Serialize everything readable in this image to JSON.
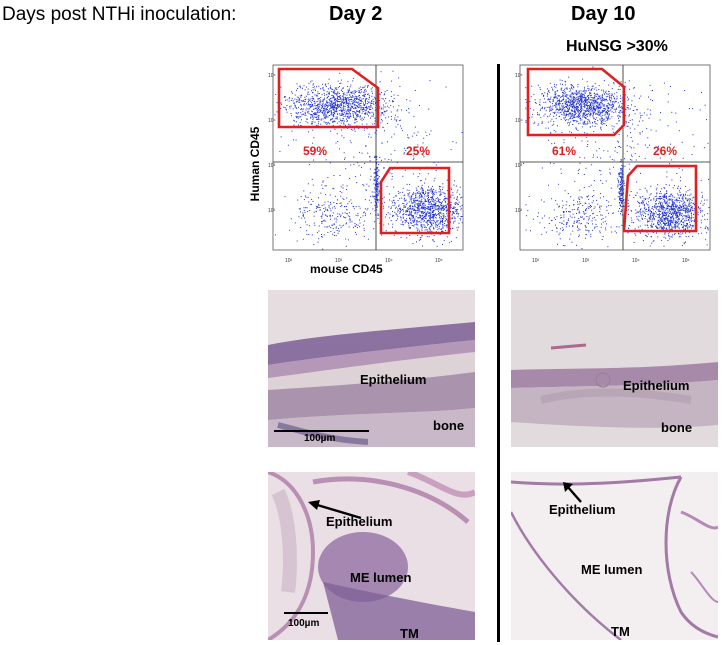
{
  "figure": {
    "header_label": "Days post NTHi inoculation:",
    "columns": [
      {
        "title": "Day 2",
        "subtitle": "",
        "flow": {
          "y_axis_title": "Human CD45",
          "x_axis_title": "mouse CD45",
          "gate_human_percent": "59%",
          "gate_mouse_percent": "25%",
          "gate_color": "#e02020",
          "dot_color": "#2233cc"
        },
        "histology_upper": {
          "labels": [
            "Epithelium",
            "bone"
          ],
          "scale_bar": "100µm"
        },
        "histology_lower": {
          "labels": [
            "Epithelium",
            "ME lumen",
            "TM"
          ],
          "scale_bar": "100µm"
        }
      },
      {
        "title": "Day 10",
        "subtitle": "HuNSG >30%",
        "flow": {
          "y_axis_title": "",
          "x_axis_title": "",
          "gate_human_percent": "61%",
          "gate_mouse_percent": "26%",
          "gate_color": "#e02020",
          "dot_color": "#2233cc"
        },
        "histology_upper": {
          "labels": [
            "Epithelium",
            "bone"
          ],
          "scale_bar": ""
        },
        "histology_lower": {
          "labels": [
            "Epithelium",
            "ME lumen",
            "TM"
          ],
          "scale_bar": ""
        }
      }
    ]
  }
}
